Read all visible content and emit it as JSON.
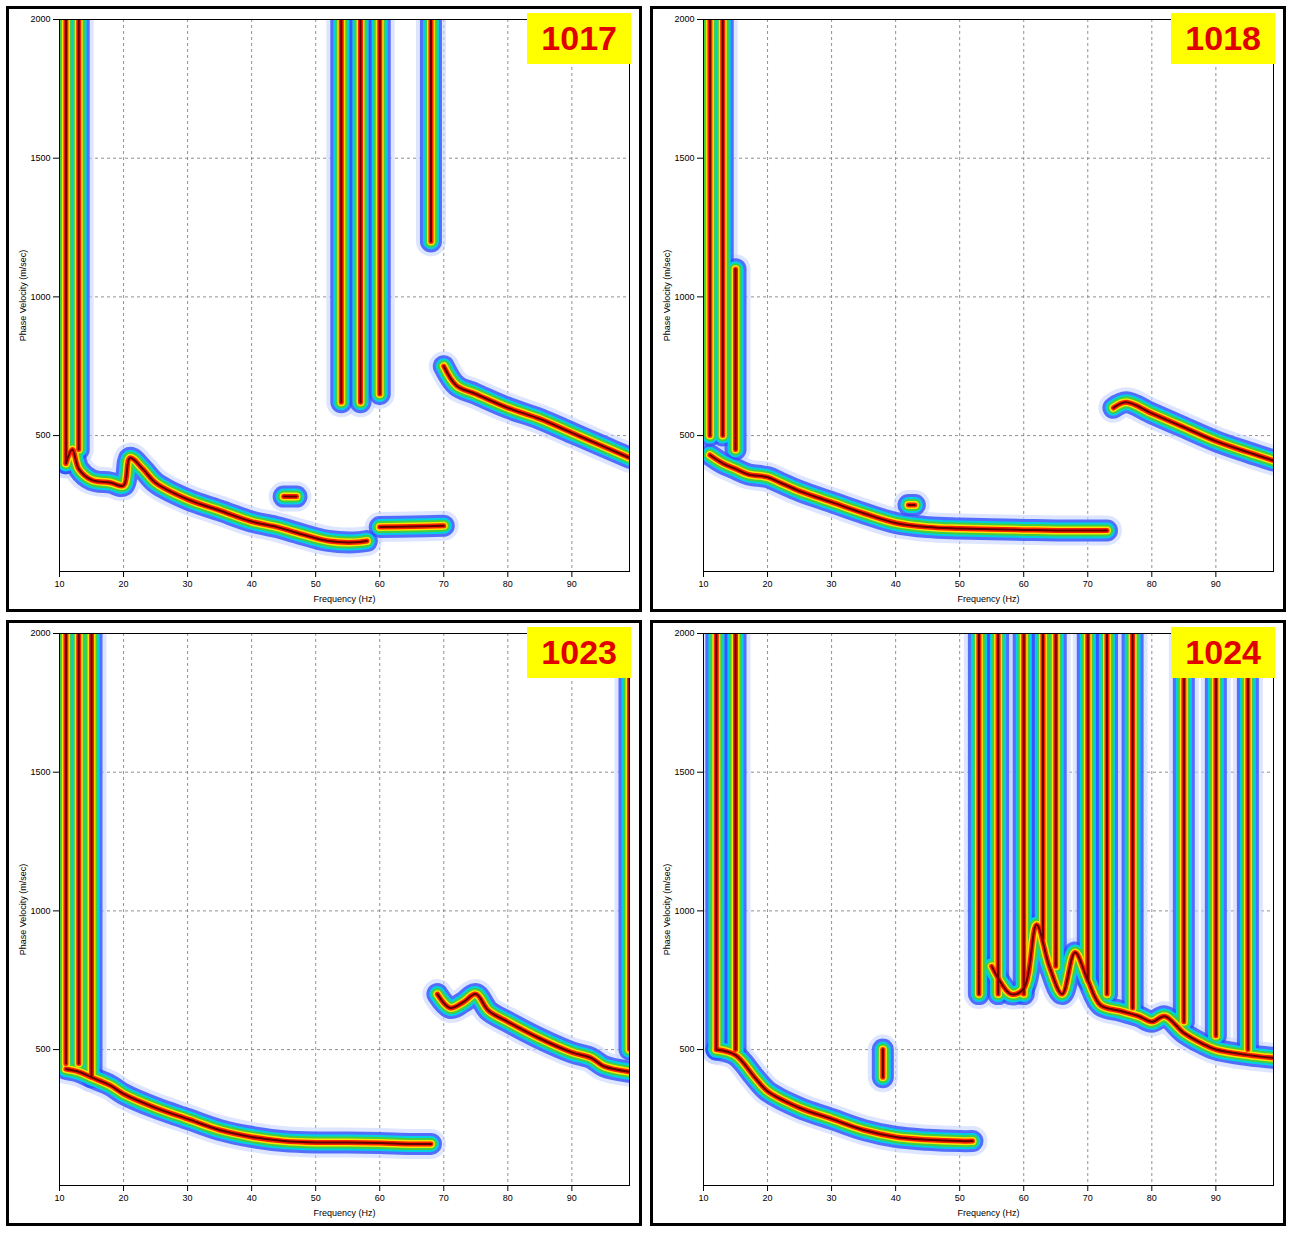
{
  "chart_data": [
    {
      "type": "line",
      "title": "1017",
      "x_label": "Frequency (Hz)",
      "y_label": "Phase Velocity (m/sec)",
      "xlim": [
        10,
        99
      ],
      "ylim": [
        10,
        2000
      ],
      "xticks": [
        10,
        20,
        30,
        40,
        50,
        60,
        70,
        80,
        90
      ],
      "yticks": [
        500,
        1000,
        1500,
        2000
      ],
      "grid": true,
      "series": [
        {
          "x": [
            11,
            12,
            13,
            15,
            18,
            20,
            21,
            23,
            25,
            30,
            35,
            40,
            44,
            47,
            52,
            56,
            58
          ],
          "values": [
            400,
            450,
            380,
            340,
            330,
            320,
            420,
            380,
            330,
            270,
            230,
            190,
            170,
            150,
            120,
            115,
            120
          ]
        },
        {
          "x": [
            60,
            65,
            70
          ],
          "values": [
            170,
            172,
            175
          ]
        },
        {
          "x": [
            45,
            47
          ],
          "values": [
            280,
            280
          ]
        },
        {
          "x": [
            70,
            72,
            75,
            80,
            85,
            90,
            95,
            99
          ],
          "values": [
            750,
            680,
            650,
            600,
            560,
            510,
            460,
            420
          ]
        },
        {
          "x": [
            11,
            11
          ],
          "values": [
            400,
            2000
          ]
        },
        {
          "x": [
            13,
            13
          ],
          "values": [
            450,
            2000
          ]
        },
        {
          "x": [
            54,
            54
          ],
          "values": [
            620,
            2000
          ]
        },
        {
          "x": [
            57,
            57
          ],
          "values": [
            620,
            2000
          ]
        },
        {
          "x": [
            60,
            60
          ],
          "values": [
            650,
            2000
          ]
        },
        {
          "x": [
            68,
            68
          ],
          "values": [
            1200,
            2000
          ]
        }
      ]
    },
    {
      "type": "line",
      "title": "1018",
      "x_label": "Frequency (Hz)",
      "y_label": "Phase Velocity (m/sec)",
      "xlim": [
        10,
        99
      ],
      "ylim": [
        10,
        2000
      ],
      "xticks": [
        10,
        20,
        30,
        40,
        50,
        60,
        70,
        80,
        90
      ],
      "yticks": [
        500,
        1000,
        1500,
        2000
      ],
      "grid": true,
      "series": [
        {
          "x": [
            11,
            13,
            15,
            17,
            20,
            22,
            25,
            30,
            35,
            40,
            45,
            50,
            55,
            60,
            65,
            70,
            73
          ],
          "values": [
            430,
            400,
            380,
            360,
            350,
            330,
            300,
            260,
            220,
            185,
            170,
            165,
            162,
            160,
            158,
            158,
            158
          ]
        },
        {
          "x": [
            42,
            43
          ],
          "values": [
            250,
            250
          ]
        },
        {
          "x": [
            74,
            76,
            80,
            85,
            90,
            95,
            99
          ],
          "values": [
            600,
            620,
            580,
            530,
            480,
            440,
            410
          ]
        },
        {
          "x": [
            11,
            11
          ],
          "values": [
            500,
            2000
          ]
        },
        {
          "x": [
            13,
            13
          ],
          "values": [
            500,
            2000
          ]
        },
        {
          "x": [
            15,
            15
          ],
          "values": [
            450,
            1100
          ]
        }
      ]
    },
    {
      "type": "line",
      "title": "1023",
      "x_label": "Frequency (Hz)",
      "y_label": "Phase Velocity (m/sec)",
      "xlim": [
        10,
        99
      ],
      "ylim": [
        10,
        2000
      ],
      "xticks": [
        10,
        20,
        30,
        40,
        50,
        60,
        70,
        80,
        90
      ],
      "yticks": [
        500,
        1000,
        1500,
        2000
      ],
      "grid": true,
      "series": [
        {
          "x": [
            11,
            13,
            15,
            18,
            20,
            25,
            30,
            35,
            40,
            45,
            50,
            55,
            60,
            65,
            68
          ],
          "values": [
            430,
            420,
            400,
            370,
            340,
            290,
            250,
            210,
            185,
            170,
            165,
            165,
            163,
            160,
            160
          ]
        },
        {
          "x": [
            69,
            71,
            73,
            75,
            77,
            80,
            85,
            90,
            93,
            95,
            99
          ],
          "values": [
            700,
            650,
            670,
            700,
            640,
            600,
            540,
            490,
            470,
            440,
            420
          ]
        },
        {
          "x": [
            11,
            11
          ],
          "values": [
            450,
            2000
          ]
        },
        {
          "x": [
            13,
            13
          ],
          "values": [
            450,
            2000
          ]
        },
        {
          "x": [
            15,
            15
          ],
          "values": [
            400,
            2000
          ]
        },
        {
          "x": [
            99,
            99
          ],
          "values": [
            500,
            2000
          ]
        }
      ]
    },
    {
      "type": "line",
      "title": "1024",
      "x_label": "Frequency (Hz)",
      "y_label": "Phase Velocity (m/sec)",
      "xlim": [
        10,
        99
      ],
      "ylim": [
        10,
        2000
      ],
      "xticks": [
        10,
        20,
        30,
        40,
        50,
        60,
        70,
        80,
        90
      ],
      "yticks": [
        500,
        1000,
        1500,
        2000
      ],
      "grid": true,
      "series": [
        {
          "x": [
            12,
            15,
            18,
            20,
            25,
            30,
            35,
            40,
            45,
            50,
            52
          ],
          "values": [
            500,
            480,
            400,
            350,
            290,
            250,
            210,
            185,
            175,
            170,
            170
          ]
        },
        {
          "x": [
            38,
            38
          ],
          "values": [
            400,
            500
          ]
        },
        {
          "x": [
            55,
            58,
            60,
            62,
            64,
            66,
            68,
            70,
            72,
            75,
            78,
            80,
            82,
            85,
            88,
            90,
            95,
            99
          ],
          "values": [
            800,
            700,
            720,
            950,
            800,
            700,
            850,
            750,
            660,
            640,
            620,
            600,
            620,
            560,
            520,
            500,
            480,
            470
          ]
        },
        {
          "x": [
            12,
            12
          ],
          "values": [
            500,
            2000
          ]
        },
        {
          "x": [
            15,
            15
          ],
          "values": [
            500,
            2000
          ]
        },
        {
          "x": [
            53,
            53
          ],
          "values": [
            700,
            2000
          ]
        },
        {
          "x": [
            56,
            56
          ],
          "values": [
            700,
            2000
          ]
        },
        {
          "x": [
            60,
            60
          ],
          "values": [
            700,
            2000
          ]
        },
        {
          "x": [
            63,
            63
          ],
          "values": [
            900,
            2000
          ]
        },
        {
          "x": [
            65,
            65
          ],
          "values": [
            800,
            2000
          ]
        },
        {
          "x": [
            70,
            70
          ],
          "values": [
            750,
            2000
          ]
        },
        {
          "x": [
            73,
            73
          ],
          "values": [
            700,
            2000
          ]
        },
        {
          "x": [
            77,
            77
          ],
          "values": [
            650,
            2000
          ]
        },
        {
          "x": [
            85,
            85
          ],
          "values": [
            600,
            2000
          ]
        },
        {
          "x": [
            90,
            90
          ],
          "values": [
            550,
            2000
          ]
        },
        {
          "x": [
            95,
            95
          ],
          "values": [
            500,
            2000
          ]
        }
      ]
    }
  ]
}
